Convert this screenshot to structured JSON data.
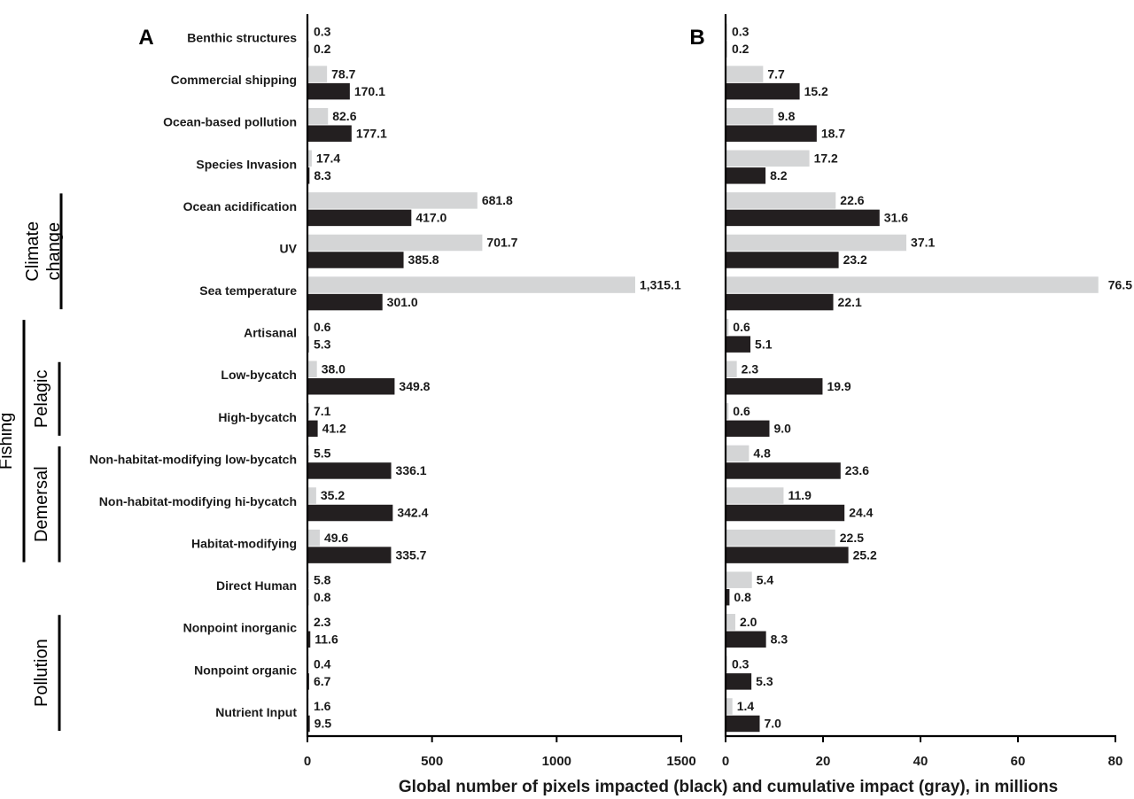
{
  "colors": {
    "black_bar": "#231f20",
    "gray_bar": "#d4d5d6",
    "axis": "#000000"
  },
  "xaxis_title": "Global number of pixels impacted (black) and cumulative impact (gray), in millions",
  "categories": [
    "Benthic structures",
    "Commercial shipping",
    "Ocean-based pollution",
    "Species Invasion",
    "Ocean acidification",
    "UV",
    "Sea temperature",
    "Artisanal",
    "Low-bycatch",
    "High-bycatch",
    "Non-habitat-modifying low-bycatch",
    "Non-habitat-modifying hi-bycatch",
    "Habitat-modifying",
    "Direct Human",
    "Nonpoint inorganic",
    "Nonpoint organic",
    "Nutrient Input"
  ],
  "groups": [
    {
      "label": "Climate change",
      "lines": [
        "Climate",
        "change"
      ],
      "level": "outer",
      "from": 4,
      "to": 6
    },
    {
      "label": "Fishing",
      "lines": [
        "Fishing"
      ],
      "level": "outer",
      "from": 7,
      "to": 12
    },
    {
      "label": "Pelagic",
      "lines": [
        "Pelagic"
      ],
      "level": "inner",
      "from": 8,
      "to": 9
    },
    {
      "label": "Demersal",
      "lines": [
        "Demersal"
      ],
      "level": "inner",
      "from": 10,
      "to": 12
    },
    {
      "label": "Pollution",
      "lines": [
        "Pollution"
      ],
      "level": "inner",
      "from": 14,
      "to": 16
    }
  ],
  "chart_data": [
    {
      "panel": "A",
      "type": "bar",
      "orientation": "horizontal",
      "xlim": [
        0,
        1500
      ],
      "xticks": [
        0,
        500,
        1000,
        1500
      ],
      "series": [
        {
          "color": "gray",
          "values": [
            0.3,
            78.7,
            82.6,
            17.4,
            681.8,
            701.7,
            1315.1,
            0.6,
            38.0,
            7.1,
            5.5,
            35.2,
            49.6,
            5.8,
            2.3,
            0.4,
            1.6
          ],
          "labels": [
            "0.3",
            "78.7",
            "82.6",
            "17.4",
            "681.8",
            "701.7",
            "1,315.1",
            "0.6",
            "38.0",
            "7.1",
            "5.5",
            "35.2",
            "49.6",
            "5.8",
            "2.3",
            "0.4",
            "1.6"
          ]
        },
        {
          "color": "black",
          "values": [
            0.2,
            170.1,
            177.1,
            8.3,
            417.0,
            385.8,
            301.0,
            5.3,
            349.8,
            41.2,
            336.1,
            342.4,
            335.7,
            0.8,
            11.6,
            6.7,
            9.5
          ],
          "labels": [
            "0.2",
            "170.1",
            "177.1",
            "8.3",
            "417.0",
            "385.8",
            "301.0",
            "5.3",
            "349.8",
            "41.2",
            "336.1",
            "342.4",
            "335.7",
            "0.8",
            "11.6",
            "6.7",
            "9.5"
          ]
        }
      ]
    },
    {
      "panel": "B",
      "type": "bar",
      "orientation": "horizontal",
      "xlim": [
        0,
        80
      ],
      "xticks": [
        0,
        20,
        40,
        60,
        80
      ],
      "series": [
        {
          "color": "gray",
          "values": [
            0.3,
            7.7,
            9.8,
            17.2,
            22.6,
            37.1,
            76.5,
            0.6,
            2.3,
            0.6,
            4.8,
            11.9,
            22.5,
            5.4,
            2.0,
            0.3,
            1.4
          ],
          "labels": [
            "0.3",
            "7.7",
            "9.8",
            "17.2",
            "22.6",
            "37.1",
            "76.5",
            "0.6",
            "2.3",
            "0.6",
            "4.8",
            "11.9",
            "22.5",
            "5.4",
            "2.0",
            "0.3",
            "1.4"
          ]
        },
        {
          "color": "black",
          "values": [
            0.2,
            15.2,
            18.7,
            8.2,
            31.6,
            23.2,
            22.1,
            5.1,
            19.9,
            9.0,
            23.6,
            24.4,
            25.2,
            0.8,
            8.3,
            5.3,
            7.0
          ],
          "labels": [
            "0.2",
            "15.2",
            "18.7",
            "8.2",
            "31.6",
            "23.2",
            "22.1",
            "5.1",
            "19.9",
            "9.0",
            "23.6",
            "24.4",
            "25.2",
            "0.8",
            "8.3",
            "5.3",
            "7.0"
          ]
        }
      ]
    }
  ]
}
